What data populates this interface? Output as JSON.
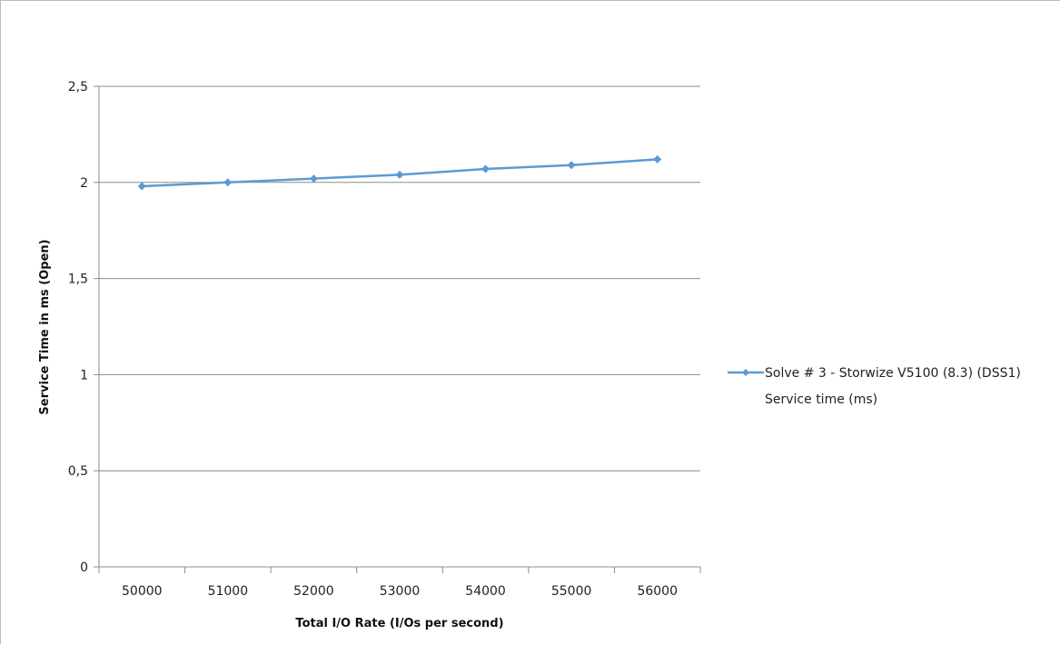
{
  "chart_data": {
    "type": "line",
    "title": "",
    "xlabel": "Total I/O Rate (I/Os per second)",
    "ylabel": "Service Time in ms (Open)",
    "categories": [
      "50000",
      "51000",
      "52000",
      "53000",
      "54000",
      "55000",
      "56000"
    ],
    "y_tick_labels": [
      "0",
      "0,5",
      "1",
      "1,5",
      "2",
      "2,5"
    ],
    "ylim": [
      0,
      2.5
    ],
    "grid": true,
    "legend_position": "right",
    "series": [
      {
        "name": "Solve # 3 - Storwize V5100 (8.3) (DSS1)",
        "name_line2": "Service time (ms)",
        "color": "#5b9bd5",
        "marker": "diamond",
        "values": [
          1.98,
          2.0,
          2.02,
          2.04,
          2.07,
          2.09,
          2.12
        ]
      }
    ]
  }
}
